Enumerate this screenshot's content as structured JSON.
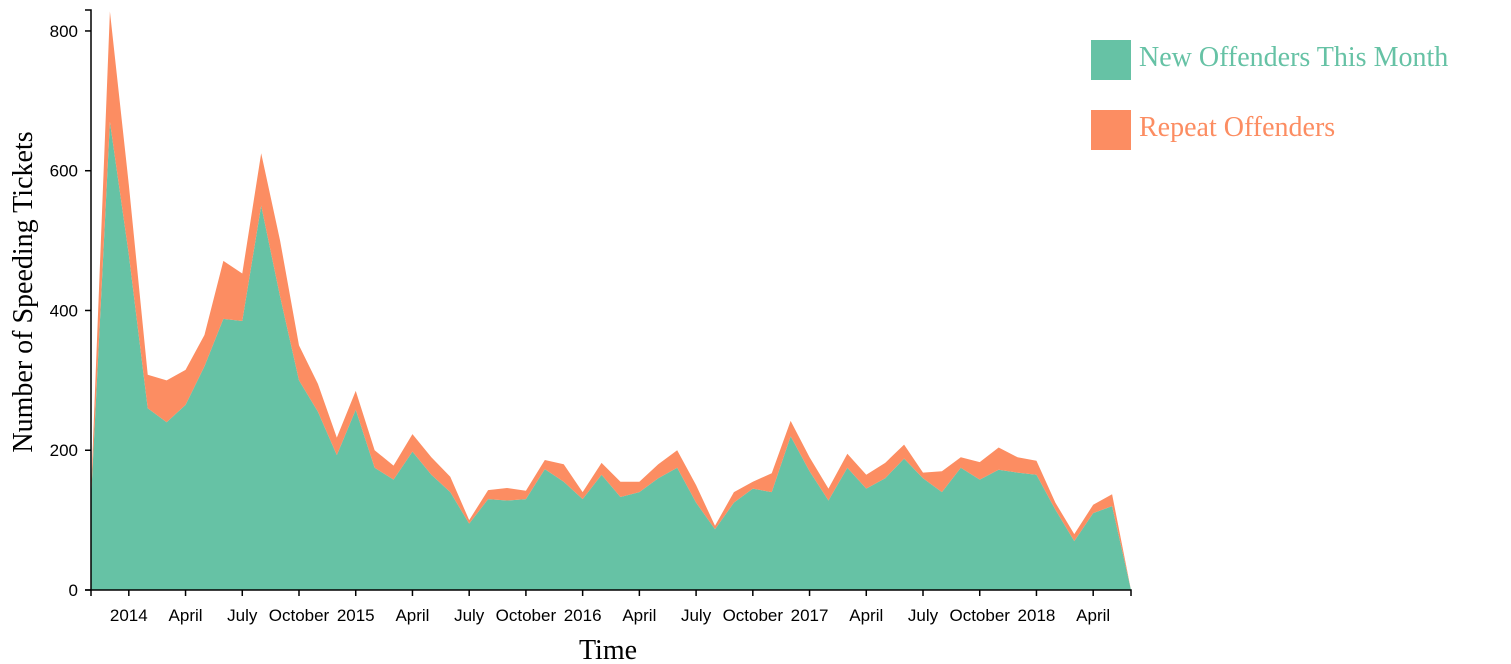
{
  "chart_data": {
    "type": "area",
    "stacked": true,
    "xlabel": "Time",
    "ylabel": "Number of Speeding Tickets",
    "ylim": [
      0,
      830
    ],
    "y_ticks": [
      0,
      200,
      400,
      600,
      800
    ],
    "x_ticks": [
      {
        "index": 2,
        "label": "2014"
      },
      {
        "index": 5,
        "label": "April"
      },
      {
        "index": 8,
        "label": "July"
      },
      {
        "index": 11,
        "label": "October"
      },
      {
        "index": 14,
        "label": "2015"
      },
      {
        "index": 17,
        "label": "April"
      },
      {
        "index": 20,
        "label": "July"
      },
      {
        "index": 23,
        "label": "October"
      },
      {
        "index": 26,
        "label": "2016"
      },
      {
        "index": 29,
        "label": "April"
      },
      {
        "index": 32,
        "label": "July"
      },
      {
        "index": 35,
        "label": "October"
      },
      {
        "index": 38,
        "label": "2017"
      },
      {
        "index": 41,
        "label": "April"
      },
      {
        "index": 44,
        "label": "July"
      },
      {
        "index": 47,
        "label": "October"
      },
      {
        "index": 50,
        "label": "2018"
      },
      {
        "index": 53,
        "label": "April"
      }
    ],
    "series": [
      {
        "name": "New Offenders This Month",
        "color": "#66c2a5",
        "values": [
          130,
          670,
          480,
          260,
          240,
          265,
          320,
          388,
          385,
          550,
          420,
          300,
          255,
          193,
          258,
          175,
          158,
          198,
          165,
          140,
          95,
          130,
          128,
          130,
          173,
          155,
          130,
          165,
          133,
          140,
          160,
          175,
          125,
          87,
          125,
          145,
          140,
          220,
          170,
          128,
          175,
          145,
          160,
          188,
          160,
          140,
          175,
          158,
          172,
          168,
          165,
          115,
          70,
          110,
          120,
          0
        ]
      },
      {
        "name": "Repeat Offenders",
        "color": "#fc8d62",
        "values": [
          10,
          158,
          100,
          48,
          60,
          50,
          45,
          83,
          68,
          75,
          80,
          50,
          40,
          25,
          27,
          25,
          20,
          25,
          25,
          22,
          5,
          13,
          18,
          12,
          13,
          25,
          10,
          17,
          22,
          15,
          20,
          25,
          25,
          5,
          15,
          10,
          27,
          22,
          20,
          17,
          20,
          20,
          22,
          20,
          8,
          30,
          15,
          25,
          32,
          22,
          20,
          10,
          10,
          12,
          17,
          0
        ]
      }
    ]
  }
}
